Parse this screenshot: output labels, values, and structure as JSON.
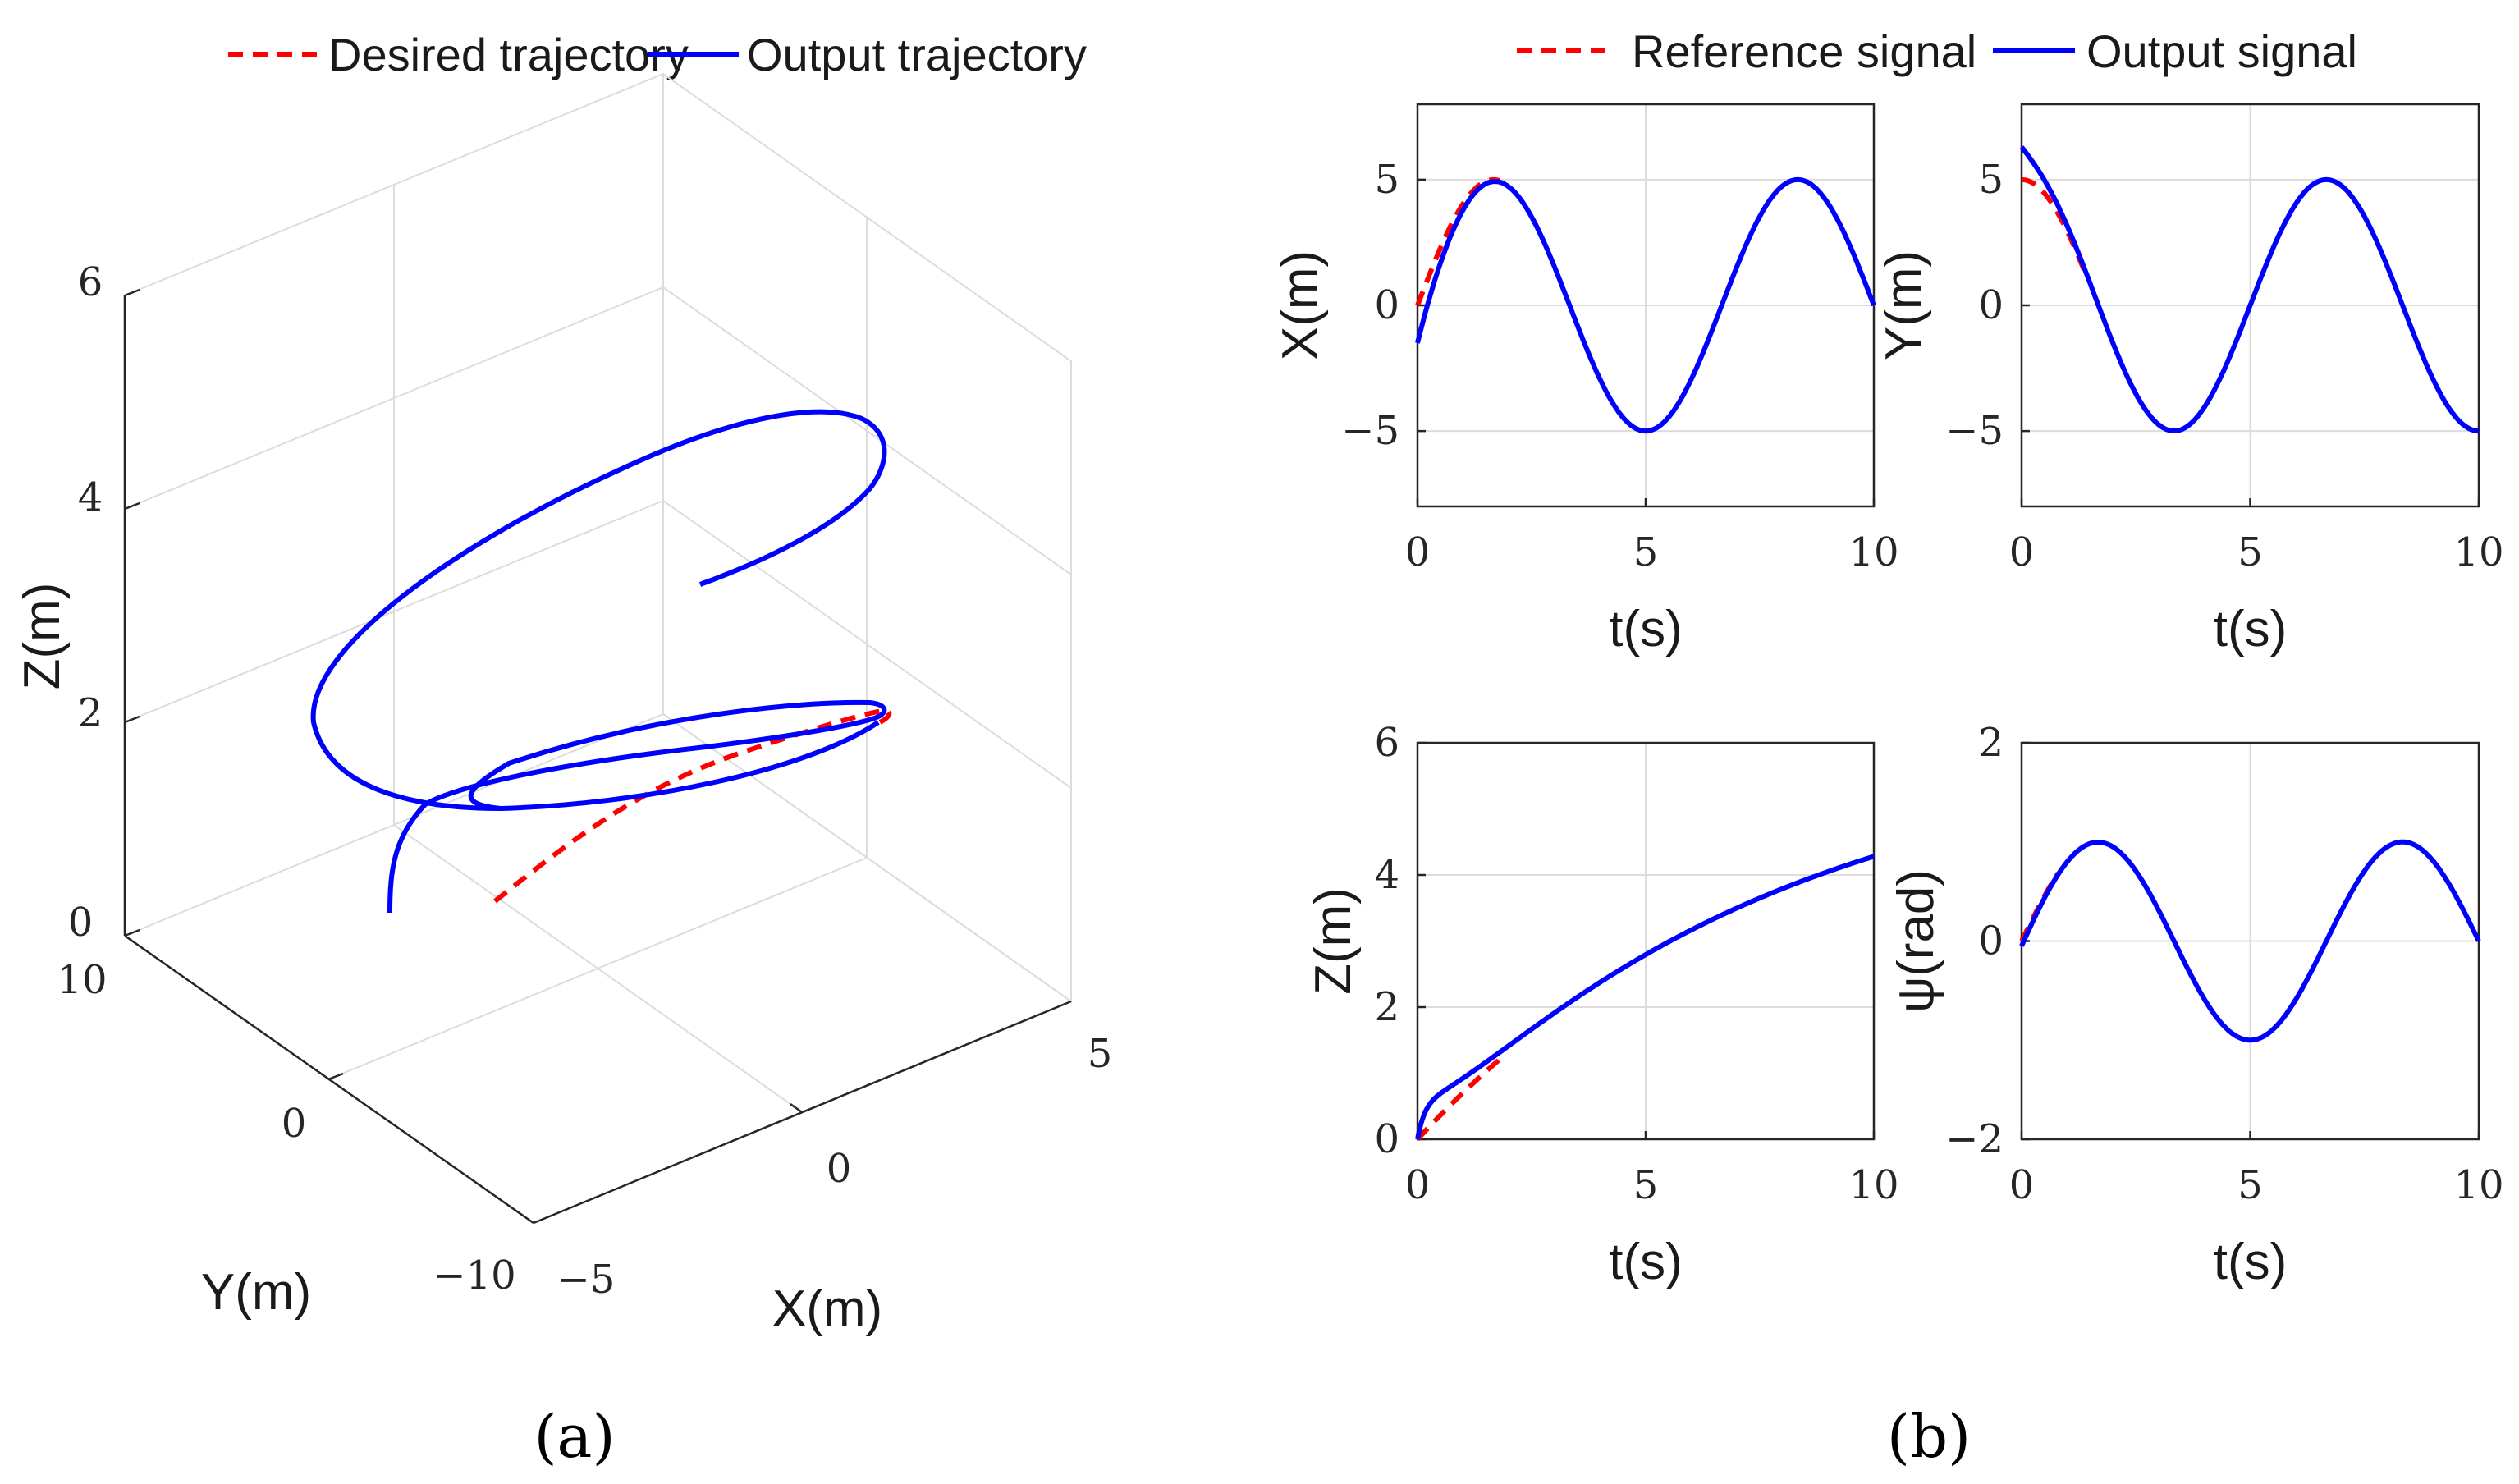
{
  "colors": {
    "reference": "#ff0000",
    "output": "#0000ff"
  },
  "panel_labels": {
    "a": "(a)",
    "b": "(b)"
  },
  "chart_data": [
    {
      "id": "traj3d",
      "type": "line",
      "title": "",
      "legend": {
        "ref": "Desired trajectory",
        "out": "Output trajectory",
        "position": "top"
      },
      "xlabel": "X(m)",
      "ylabel": "Y(m)",
      "zlabel": "Z(m)",
      "xlim": [
        -5,
        5
      ],
      "ylim": [
        -10,
        10
      ],
      "zlim": [
        0,
        6
      ],
      "xticks": [
        "−5",
        "0",
        "5"
      ],
      "yticks": [
        "−10",
        "0",
        "10"
      ],
      "zticks": [
        "0",
        "2",
        "4",
        "6"
      ],
      "series": [
        {
          "name": "Desired trajectory",
          "style": "dashed",
          "t_range": [
            0,
            1.7
          ]
        },
        {
          "name": "Output trajectory",
          "style": "solid",
          "t_range": [
            0,
            10
          ]
        }
      ]
    },
    {
      "id": "x_t",
      "type": "line",
      "xlabel": "t(s)",
      "ylabel": "X(m)",
      "xlim": [
        0,
        10
      ],
      "ylim": [
        -8,
        8
      ],
      "xticks": [
        "0",
        "5",
        "10"
      ],
      "yticks": [
        "5",
        "0",
        "−5"
      ],
      "ytick_values": [
        5,
        0,
        -5
      ],
      "series": [
        {
          "name": "Reference signal",
          "formula": "5 sin(0.9425 t)",
          "t_range": [
            0,
            1.8
          ]
        },
        {
          "name": "Output signal",
          "formula": "5 sin(0.9425 t)",
          "initial": -1.5,
          "t_range": [
            0,
            10
          ]
        }
      ]
    },
    {
      "id": "y_t",
      "type": "line",
      "xlabel": "t(s)",
      "ylabel": "Y(m)",
      "xlim": [
        0,
        10
      ],
      "ylim": [
        -8,
        8
      ],
      "xticks": [
        "0",
        "5",
        "10"
      ],
      "yticks": [
        "5",
        "0",
        "−5"
      ],
      "ytick_values": [
        5,
        0,
        -5
      ],
      "series": [
        {
          "name": "Reference signal",
          "formula": "5 cos(0.9425 t)",
          "t_range": [
            0,
            1.4
          ]
        },
        {
          "name": "Output signal",
          "formula": "5 cos(0.9425 t)",
          "initial": 6.3,
          "t_range": [
            0,
            10
          ]
        }
      ]
    },
    {
      "id": "z_t",
      "type": "line",
      "xlabel": "t(s)",
      "ylabel": "Z(m)",
      "xlim": [
        0,
        10
      ],
      "ylim": [
        0,
        6
      ],
      "xticks": [
        "0",
        "5",
        "10"
      ],
      "yticks": [
        "6",
        "4",
        "2",
        "0"
      ],
      "ytick_values": [
        6,
        4,
        2,
        0
      ],
      "series": [
        {
          "name": "Reference signal",
          "formula": "6 (1 - exp(-0.125 t))",
          "t_range": [
            0,
            1.8
          ]
        },
        {
          "name": "Output signal",
          "formula": "6 (1 - exp(-0.125 t))",
          "initial": 0,
          "t_range": [
            0,
            10
          ]
        }
      ]
    },
    {
      "id": "psi_t",
      "type": "line",
      "xlabel": "t(s)",
      "ylabel": "ψ(rad)",
      "xlim": [
        0,
        10
      ],
      "ylim": [
        -2,
        2
      ],
      "xticks": [
        "0",
        "5",
        "10"
      ],
      "yticks": [
        "2",
        "0",
        "−2"
      ],
      "ytick_values": [
        2,
        0,
        -2
      ],
      "series": [
        {
          "name": "Reference signal",
          "formula": "sin(0.9425 t)",
          "t_range": [
            0,
            0.8
          ]
        },
        {
          "name": "Output signal",
          "formula": "sin(0.9425 t)",
          "initial": -0.05,
          "t_range": [
            0,
            10
          ]
        }
      ]
    }
  ],
  "legend_b": {
    "ref": "Reference signal",
    "out": "Output signal",
    "position": "top"
  }
}
